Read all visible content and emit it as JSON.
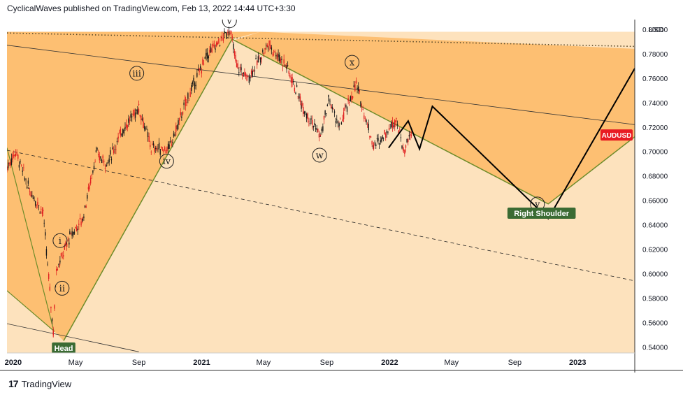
{
  "header": {
    "publisher_line": "CyclicalWaves published on TradingView.com, Feb 13, 2022 14:44 UTC+3:30"
  },
  "footer": {
    "brand": "TradingView",
    "logo_icon": "tradingview-logo-icon"
  },
  "colors": {
    "light_zone": "#fde2bd",
    "dark_zone": "#fdbf72",
    "zone_border": "#6e8c2a",
    "candle_up": "#1a1a1a",
    "candle_down": "#e02020",
    "badge": "#e81b23",
    "label_bg": "#3b6b33"
  },
  "chart_data": {
    "type": "candlestick",
    "symbol": "AUDUSD",
    "currency": "USD",
    "x_ticks": [
      {
        "label": "2020",
        "date": "2020-01-01"
      },
      {
        "label": "May",
        "date": "2020-05-01"
      },
      {
        "label": "Sep",
        "date": "2020-09-01"
      },
      {
        "label": "2021",
        "date": "2021-01-01"
      },
      {
        "label": "May",
        "date": "2021-05-01"
      },
      {
        "label": "Sep",
        "date": "2021-09-01"
      },
      {
        "label": "2022",
        "date": "2022-01-01"
      },
      {
        "label": "May",
        "date": "2022-05-01"
      },
      {
        "label": "Sep",
        "date": "2022-09-01"
      },
      {
        "label": "2023",
        "date": "2023-01-01"
      }
    ],
    "y_ticks": [
      "0.54000",
      "0.56000",
      "0.58000",
      "0.60000",
      "0.62000",
      "0.64000",
      "0.66000",
      "0.68000",
      "0.70000",
      "0.72000",
      "0.74000",
      "0.76000",
      "0.78000",
      "0.80000"
    ],
    "ylim": [
      0.535,
      0.808
    ],
    "xlim": [
      "2019-12-20",
      "2023-04-22"
    ],
    "last_price_label": "AUDUSD",
    "last_price": 0.7135,
    "price_path": [
      [
        "2019-12-20",
        0.687
      ],
      [
        "2020-01-06",
        0.7
      ],
      [
        "2020-01-31",
        0.67
      ],
      [
        "2020-02-28",
        0.65
      ],
      [
        "2020-03-19",
        0.552
      ],
      [
        "2020-03-25",
        0.605
      ],
      [
        "2020-04-01",
        0.61
      ],
      [
        "2020-04-20",
        0.63
      ],
      [
        "2020-05-15",
        0.645
      ],
      [
        "2020-06-10",
        0.698
      ],
      [
        "2020-07-01",
        0.69
      ],
      [
        "2020-08-01",
        0.718
      ],
      [
        "2020-09-01",
        0.736
      ],
      [
        "2020-09-25",
        0.703
      ],
      [
        "2020-10-30",
        0.702
      ],
      [
        "2020-12-01",
        0.74
      ],
      [
        "2021-01-10",
        0.778
      ],
      [
        "2021-02-25",
        0.8
      ],
      [
        "2021-03-10",
        0.77
      ],
      [
        "2021-04-01",
        0.76
      ],
      [
        "2021-05-10",
        0.788
      ],
      [
        "2021-06-15",
        0.77
      ],
      [
        "2021-07-15",
        0.738
      ],
      [
        "2021-08-20",
        0.712
      ],
      [
        "2021-09-05",
        0.743
      ],
      [
        "2021-09-25",
        0.72
      ],
      [
        "2021-10-28",
        0.755
      ],
      [
        "2021-12-01",
        0.704
      ],
      [
        "2021-12-20",
        0.713
      ],
      [
        "2022-01-14",
        0.727
      ],
      [
        "2022-01-28",
        0.7
      ],
      [
        "2022-02-13",
        0.715
      ]
    ],
    "wave_labels": [
      {
        "text": "i",
        "date": "2020-04-01",
        "price": 0.627
      },
      {
        "text": "ii",
        "date": "2020-04-05",
        "price": 0.588
      },
      {
        "text": "iii",
        "date": "2020-08-28",
        "price": 0.764
      },
      {
        "text": "iv",
        "date": "2020-10-25",
        "price": 0.692
      },
      {
        "text": "v",
        "date": "2021-02-24",
        "price": 0.807
      },
      {
        "text": "x",
        "date": "2021-10-20",
        "price": 0.773
      },
      {
        "text": "w",
        "date": "2021-08-18",
        "price": 0.697
      },
      {
        "text": "y",
        "date": "2022-10-15",
        "price": 0.657
      }
    ],
    "annotations": [
      {
        "text": "Right Shoulder",
        "date": "2022-10-23",
        "price": 0.6495
      },
      {
        "text": "Head",
        "date": "2020-04-08",
        "price": 0.539
      }
    ],
    "projection_path": [
      [
        "2021-12-30",
        0.703
      ],
      [
        "2022-02-06",
        0.725
      ],
      [
        "2022-02-28",
        0.702
      ],
      [
        "2022-03-25",
        0.737
      ],
      [
        "2022-11-05",
        0.645
      ],
      [
        "2023-04-22",
        0.768
      ]
    ],
    "zones": {
      "light_top": 0.798,
      "dark_triangle": [
        [
          "2019-12-20",
          0.703
        ],
        [
          "2020-03-20",
          0.553
        ],
        [
          "2019-12-20",
          0.586
        ]
      ],
      "dark_channel_upper": [
        [
          "2020-04-08",
          0.545
        ],
        [
          "2021-02-25",
          0.79
        ],
        [
          "2021-04-25",
          0.798
        ]
      ],
      "channel_lower_line": [
        [
          "2020-04-08",
          0.545
        ],
        [
          "2021-03-01",
          0.792
        ],
        [
          "2022-11-05",
          0.657
        ],
        [
          "2023-04-22",
          0.712
        ]
      ],
      "upper_band_top": [
        [
          "2021-04-25",
          0.798
        ],
        [
          "2023-04-22",
          0.784
        ]
      ]
    },
    "trendlines": [
      {
        "style": "solid-thin",
        "points": [
          [
            "2019-12-20",
            0.787
          ],
          [
            "2023-04-22",
            0.722
          ]
        ]
      },
      {
        "style": "solid-thin",
        "points": [
          [
            "2019-12-20",
            0.559
          ],
          [
            "2020-09-01",
            0.536
          ]
        ]
      },
      {
        "style": "dashed",
        "points": [
          [
            "2019-12-20",
            0.701
          ],
          [
            "2023-04-22",
            0.594
          ]
        ]
      },
      {
        "style": "dotted-horizontal",
        "points": [
          [
            "2019-12-20",
            0.797
          ],
          [
            "2023-04-22",
            0.786
          ]
        ]
      }
    ]
  }
}
